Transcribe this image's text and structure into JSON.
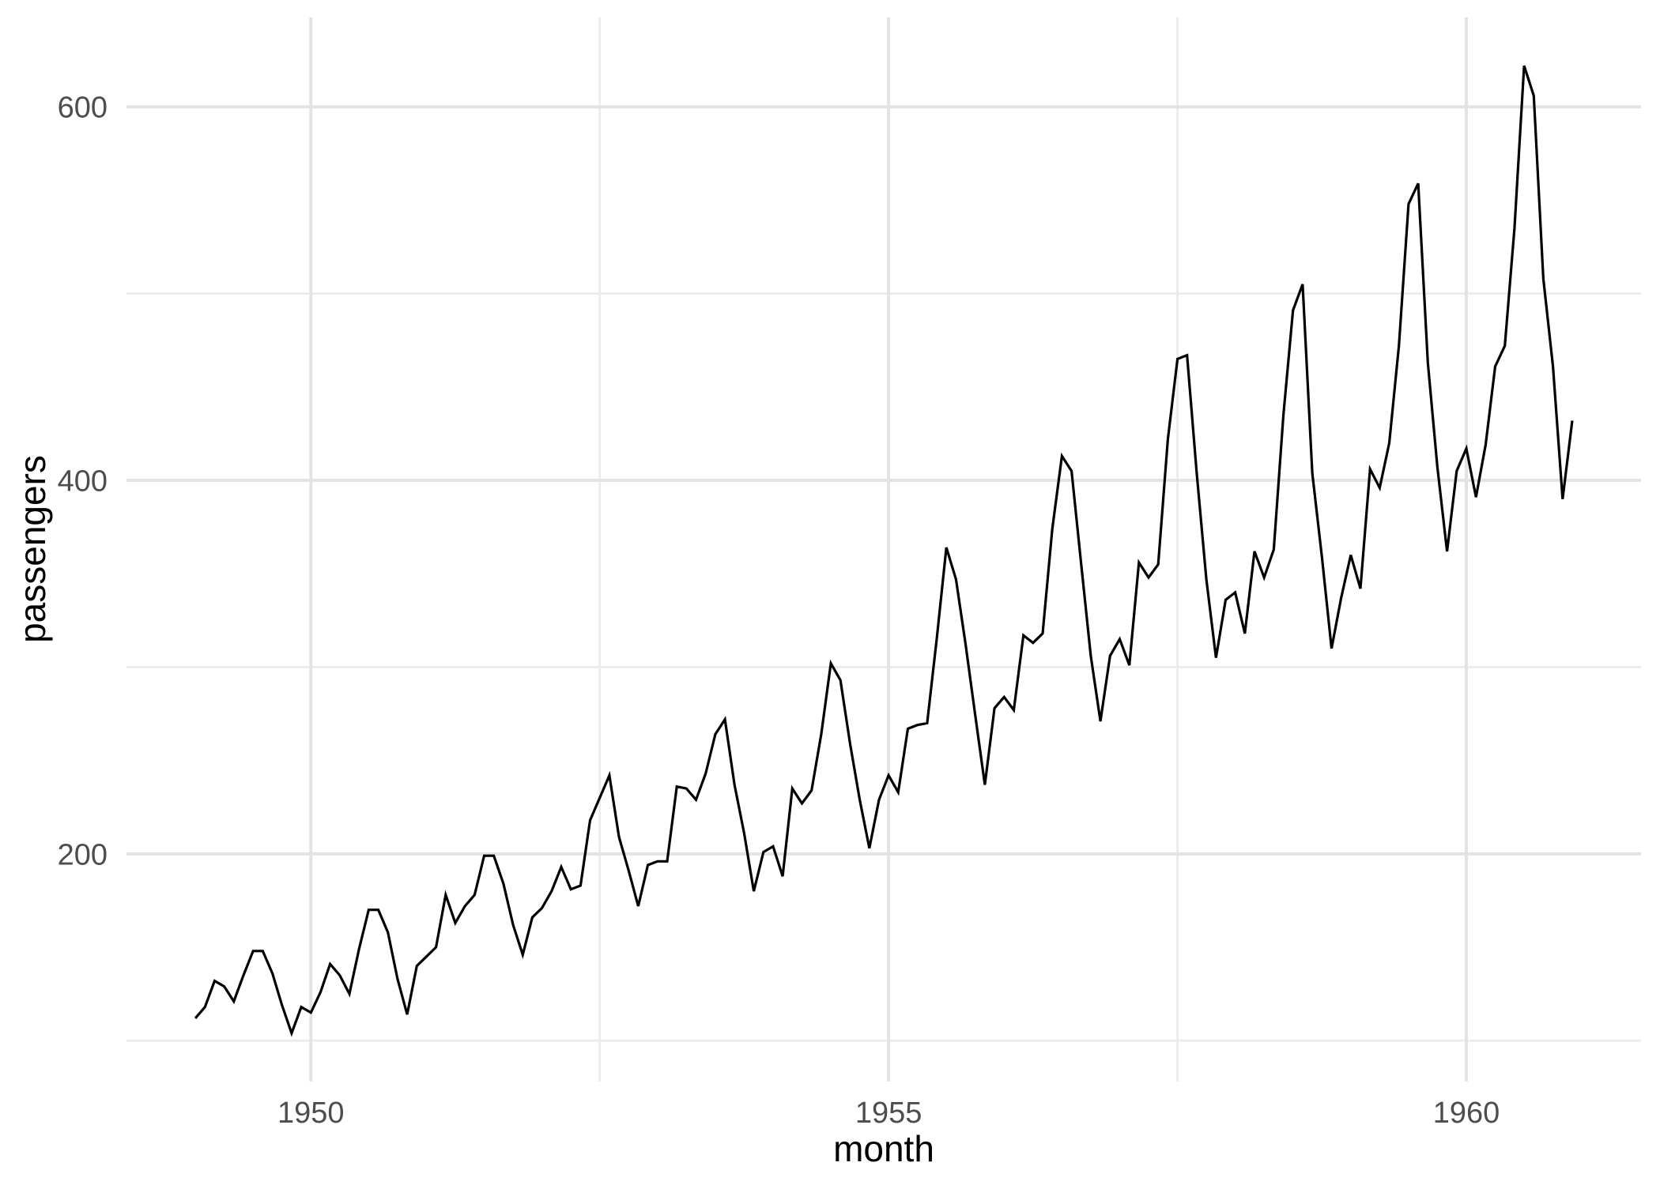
{
  "chart_data": {
    "type": "line",
    "title": "",
    "xlabel": "month",
    "ylabel": "passengers",
    "legend": "none",
    "grid": "on",
    "x_tick_labels": [
      "1950",
      "1955",
      "1960"
    ],
    "x_tick_years": [
      1950,
      1955,
      1960
    ],
    "x_minor_years": [
      1952.5,
      1957.5
    ],
    "y_tick_labels": [
      "200",
      "400",
      "600"
    ],
    "y_tick_values": [
      200,
      400,
      600
    ],
    "y_minor_values": [
      100,
      300,
      500
    ],
    "x_range_years": [
      1948.404,
      1961.512
    ],
    "y_range": [
      78.1,
      647.9
    ],
    "series": [
      {
        "name": "passengers",
        "start_year": 1949,
        "frequency": "monthly",
        "values": [
          112,
          118,
          132,
          129,
          121,
          135,
          148,
          148,
          136,
          119,
          104,
          118,
          115,
          126,
          141,
          135,
          125,
          149,
          170,
          170,
          158,
          133,
          114,
          140,
          145,
          150,
          178,
          163,
          172,
          178,
          199,
          199,
          184,
          162,
          146,
          166,
          171,
          180,
          193,
          181,
          183,
          218,
          230,
          242,
          209,
          191,
          172,
          194,
          196,
          196,
          236,
          235,
          229,
          243,
          264,
          272,
          237,
          211,
          180,
          201,
          204,
          188,
          235,
          227,
          234,
          264,
          302,
          293,
          259,
          229,
          203,
          229,
          242,
          233,
          267,
          269,
          270,
          315,
          364,
          347,
          312,
          274,
          237,
          278,
          284,
          277,
          317,
          313,
          318,
          374,
          413,
          405,
          355,
          306,
          271,
          306,
          315,
          301,
          356,
          348,
          355,
          422,
          465,
          467,
          404,
          347,
          305,
          336,
          340,
          318,
          362,
          348,
          363,
          435,
          491,
          505,
          404,
          359,
          310,
          337,
          360,
          342,
          406,
          396,
          420,
          472,
          548,
          559,
          463,
          407,
          362,
          405,
          417,
          391,
          419,
          461,
          472,
          535,
          622,
          606,
          508,
          461,
          390,
          432
        ]
      }
    ],
    "colors": {
      "background": "#FFFFFF",
      "line": "#000000",
      "grid_major": "#E3E3E3",
      "grid_minor": "#EBEBEB",
      "tick_text": "#4D4D4D",
      "title_text": "#000000"
    }
  }
}
